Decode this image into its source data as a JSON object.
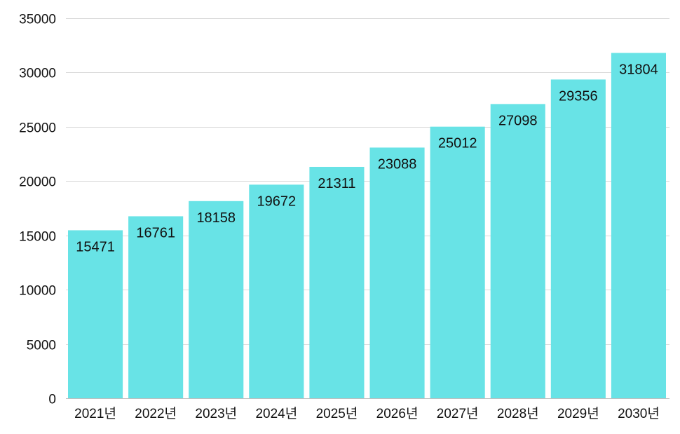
{
  "chart_data": {
    "type": "bar",
    "title": "",
    "xlabel": "",
    "ylabel": "",
    "categories": [
      "2021년",
      "2022년",
      "2023년",
      "2024년",
      "2025년",
      "2026년",
      "2027년",
      "2028년",
      "2029년",
      "2030년"
    ],
    "values": [
      15471,
      16761,
      18158,
      19672,
      21311,
      23088,
      25012,
      27098,
      29356,
      31804
    ],
    "ylim": [
      0,
      35000
    ],
    "yticks": [
      0,
      5000,
      10000,
      15000,
      20000,
      25000,
      30000,
      35000
    ],
    "grid": true,
    "legend": "none",
    "data_labels": "inside-top",
    "colors": {
      "bar": "#68e3e6",
      "grid": "#d9d9d9",
      "text": "#111111"
    }
  }
}
